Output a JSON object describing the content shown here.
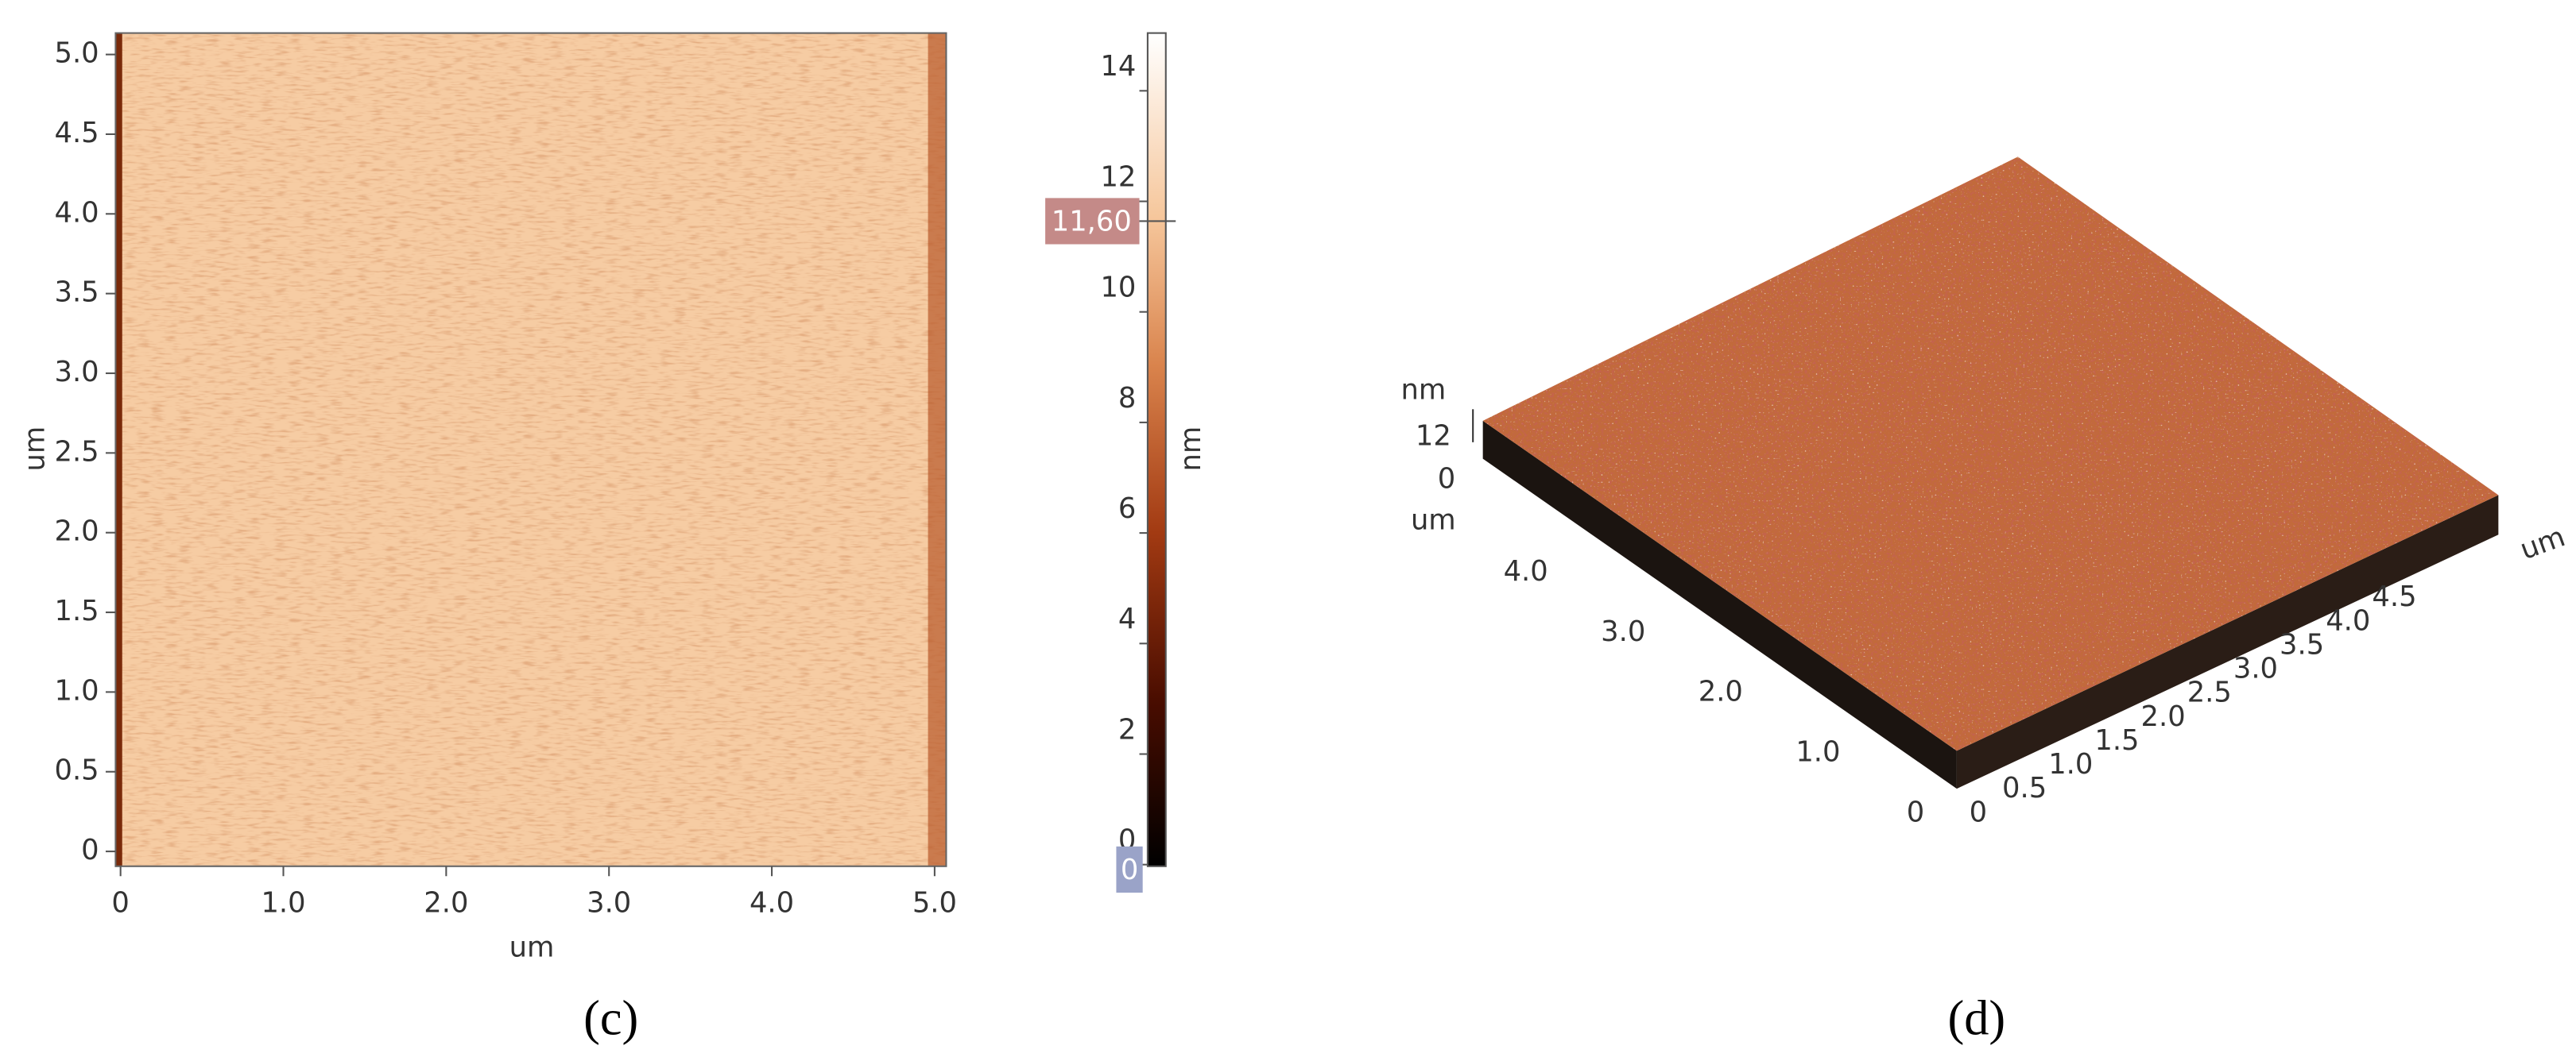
{
  "panel_c": {
    "x_label": "um",
    "y_label": "um",
    "x_ticks": [
      "0",
      "1.0",
      "2.0",
      "3.0",
      "4.0",
      "5.0"
    ],
    "y_ticks": [
      "0",
      "0.5",
      "1.0",
      "1.5",
      "2.0",
      "2.5",
      "3.0",
      "3.5",
      "4.0",
      "4.5",
      "5.0"
    ],
    "colorbar": {
      "label": "nm",
      "ticks": [
        "0",
        "2",
        "4",
        "6",
        "8",
        "10",
        "12",
        "14"
      ],
      "marker_high": "11,60",
      "marker_low": "0"
    },
    "caption": "(c)"
  },
  "panel_d": {
    "z_unit": "nm",
    "z_ticks": [
      "12",
      "0"
    ],
    "left_axis_unit": "um",
    "left_ticks": [
      "4.0",
      "3.0",
      "2.0",
      "1.0",
      "0"
    ],
    "right_axis_unit": "um",
    "right_ticks": [
      "0",
      "0.5",
      "1.0",
      "1.5",
      "2.0",
      "2.5",
      "3.0",
      "3.5",
      "4.0",
      "4.5"
    ],
    "caption": "(d)"
  }
}
